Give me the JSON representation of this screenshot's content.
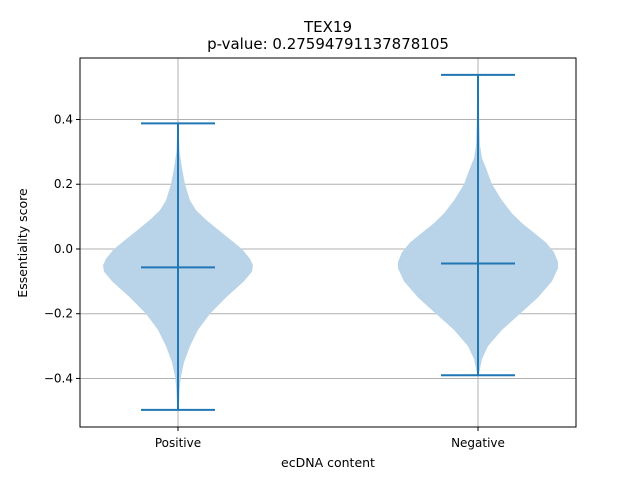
{
  "chart_data": {
    "type": "violin",
    "title": "TEX19",
    "subtitle": "p-value: 0.27594791137878105",
    "xlabel": "ecDNA content",
    "ylabel": "Essentiality score",
    "categories": [
      "Positive",
      "Negative"
    ],
    "ylim": [
      -0.55,
      0.59
    ],
    "yticks": [
      -0.4,
      -0.2,
      0.0,
      0.2,
      0.4
    ],
    "ytick_labels": [
      "−0.4",
      "−0.2",
      "0.0",
      "0.2",
      "0.4"
    ],
    "grid": true,
    "colors": {
      "body": "#b9d4e9",
      "line": "#1f77b4",
      "grid": "#b0b0b0"
    },
    "series": [
      {
        "category": "Positive",
        "min": -0.497,
        "max": 0.388,
        "median": -0.057,
        "density": [
          [
            -0.497,
            0.003
          ],
          [
            -0.47,
            0.006
          ],
          [
            -0.44,
            0.008
          ],
          [
            -0.4,
            0.013
          ],
          [
            -0.35,
            0.03
          ],
          [
            -0.3,
            0.06
          ],
          [
            -0.25,
            0.1
          ],
          [
            -0.2,
            0.16
          ],
          [
            -0.15,
            0.24
          ],
          [
            -0.1,
            0.33
          ],
          [
            -0.07,
            0.37
          ],
          [
            -0.05,
            0.375
          ],
          [
            -0.03,
            0.36
          ],
          [
            0.0,
            0.32
          ],
          [
            0.03,
            0.26
          ],
          [
            0.06,
            0.2
          ],
          [
            0.09,
            0.14
          ],
          [
            0.12,
            0.09
          ],
          [
            0.15,
            0.06
          ],
          [
            0.2,
            0.035
          ],
          [
            0.25,
            0.02
          ],
          [
            0.3,
            0.008
          ],
          [
            0.35,
            0.005
          ],
          [
            0.388,
            0.003
          ]
        ]
      },
      {
        "category": "Negative",
        "min": -0.39,
        "max": 0.538,
        "median": -0.045,
        "density": [
          [
            -0.39,
            0.003
          ],
          [
            -0.37,
            0.01
          ],
          [
            -0.34,
            0.02
          ],
          [
            -0.3,
            0.05
          ],
          [
            -0.25,
            0.12
          ],
          [
            -0.2,
            0.21
          ],
          [
            -0.15,
            0.3
          ],
          [
            -0.1,
            0.37
          ],
          [
            -0.06,
            0.4
          ],
          [
            -0.04,
            0.4
          ],
          [
            -0.01,
            0.38
          ],
          [
            0.02,
            0.34
          ],
          [
            0.05,
            0.28
          ],
          [
            0.08,
            0.22
          ],
          [
            0.11,
            0.17
          ],
          [
            0.15,
            0.12
          ],
          [
            0.2,
            0.07
          ],
          [
            0.25,
            0.04
          ],
          [
            0.28,
            0.02
          ],
          [
            0.32,
            0.01
          ],
          [
            0.4,
            0.006
          ],
          [
            0.48,
            0.005
          ],
          [
            0.538,
            0.003
          ]
        ]
      }
    ]
  }
}
